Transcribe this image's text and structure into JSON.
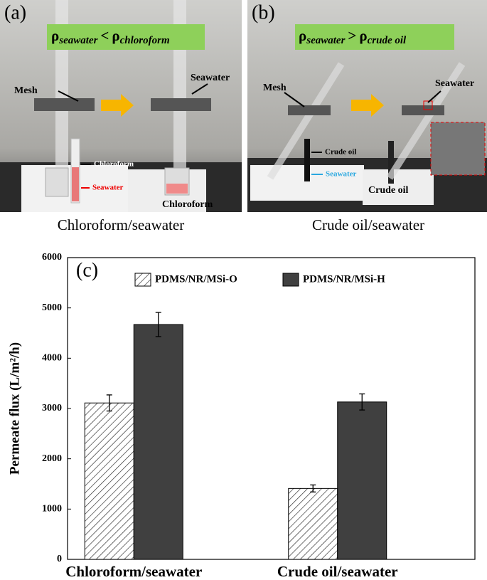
{
  "panels": [
    {
      "label": "(a)",
      "formula": [
        "ρ",
        "seawater",
        "<",
        "ρ",
        "chloroform"
      ],
      "annotations": [
        "Mesh",
        "Seawater",
        "Chloroform",
        "Seawater",
        "Chloroform"
      ],
      "caption": "Chloroform/seawater"
    },
    {
      "label": "(b)",
      "formula": [
        "ρ",
        "seawater",
        ">",
        "ρ",
        "crude oil"
      ],
      "annotations": [
        "Mesh",
        "Crude oil",
        "Seawater",
        "Seawater",
        "Crude oil"
      ],
      "caption": "Crude oil/seawater"
    }
  ],
  "chart_data": {
    "type": "bar",
    "panel_label": "(c)",
    "ylabel": "Permeate flux (L/m²/h)",
    "categories": [
      "Chloroform/seawater",
      "Crude oil/seawater"
    ],
    "series": [
      {
        "name": "PDMS/NR/MSi-O",
        "color": "#ffffff",
        "hatch": true,
        "values": [
          3110,
          1410
        ],
        "errors": [
          160,
          70
        ]
      },
      {
        "name": "PDMS/NR/MSi-H",
        "color": "#404040",
        "hatch": false,
        "values": [
          4670,
          3130
        ],
        "errors": [
          240,
          160
        ]
      }
    ],
    "ylim": [
      0,
      6000
    ],
    "yticks": [
      0,
      1000,
      2000,
      3000,
      4000,
      5000,
      6000
    ],
    "grid": false
  }
}
